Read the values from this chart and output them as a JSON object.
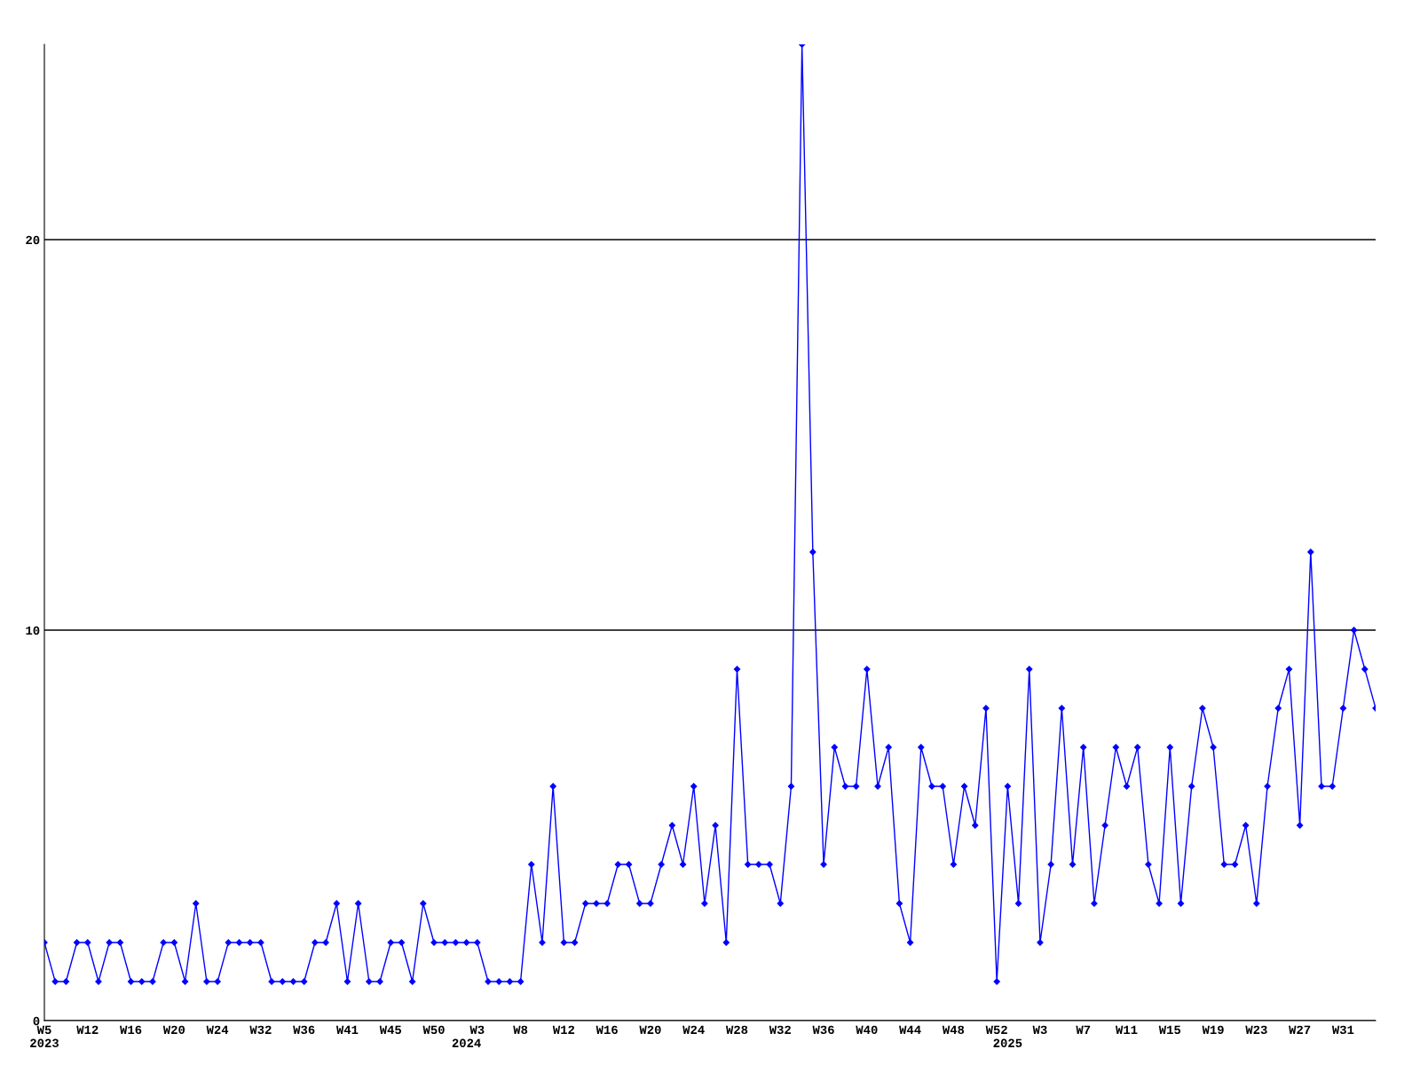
{
  "chart_data": {
    "type": "line",
    "categories": [
      "W5\n2023",
      null,
      null,
      null,
      "W12",
      null,
      null,
      null,
      "W16",
      null,
      null,
      null,
      "W20",
      null,
      null,
      null,
      "W24",
      null,
      null,
      null,
      "W32",
      null,
      null,
      null,
      "W36",
      null,
      null,
      null,
      "W41",
      null,
      null,
      null,
      "W45",
      null,
      null,
      null,
      "W50",
      null,
      null,
      "\n2024",
      "W3",
      null,
      null,
      null,
      "W8",
      null,
      null,
      null,
      "W12",
      null,
      null,
      null,
      "W16",
      null,
      null,
      null,
      "W20",
      null,
      null,
      null,
      "W24",
      null,
      null,
      null,
      "W28",
      null,
      null,
      null,
      "W32",
      null,
      null,
      null,
      "W36",
      null,
      null,
      null,
      "W40",
      null,
      null,
      null,
      "W44",
      null,
      null,
      null,
      "W48",
      null,
      null,
      null,
      "W52",
      "\n2025",
      null,
      null,
      "W3",
      null,
      null,
      null,
      "W7",
      null,
      null,
      null,
      "W11",
      null,
      null,
      null,
      "W15",
      null,
      null,
      null,
      "W19",
      null,
      null,
      null,
      "W23",
      null,
      null,
      null,
      "W27",
      null,
      null,
      null,
      "W31",
      null,
      null,
      null
    ],
    "series": [
      {
        "color": "#0000ff",
        "values": [
          2,
          1,
          1,
          2,
          2,
          1,
          2,
          2,
          1,
          1,
          1,
          2,
          2,
          1,
          3,
          1,
          1,
          2,
          2,
          2,
          2,
          1,
          1,
          1,
          1,
          2,
          2,
          3,
          1,
          3,
          1,
          1,
          2,
          2,
          1,
          3,
          2,
          2,
          2,
          2,
          2,
          1,
          1,
          1,
          1,
          4,
          2,
          6,
          2,
          2,
          3,
          3,
          3,
          4,
          4,
          3,
          3,
          4,
          5,
          4,
          6,
          3,
          5,
          2,
          9,
          4,
          4,
          4,
          3,
          6,
          25,
          12,
          4,
          7,
          6,
          6,
          9,
          6,
          7,
          3,
          2,
          7,
          6,
          6,
          4,
          6,
          5,
          8,
          1,
          6,
          3,
          9,
          2,
          4,
          8,
          4,
          7,
          3,
          5,
          7,
          6,
          7,
          4,
          3,
          7,
          3,
          6,
          8,
          7,
          4,
          4,
          5,
          3,
          6,
          8,
          9,
          5,
          12,
          6,
          6,
          8,
          10,
          9,
          8
        ]
      }
    ],
    "ylim": [
      0,
      25
    ],
    "yticks": [
      0,
      10,
      20
    ],
    "grid": "y",
    "marker": "diamond",
    "line_style": "solid"
  }
}
